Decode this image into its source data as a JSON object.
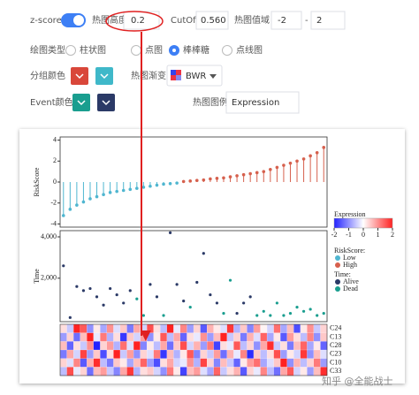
{
  "controls": {
    "zscore": {
      "label": "z-score",
      "on": true,
      "color": "#3d7ff5"
    },
    "heatmap_height": {
      "label": "热图高度",
      "value": "0.2"
    },
    "cutoff": {
      "label": "CutOff",
      "value": "0.560"
    },
    "heatmap_range": {
      "label": "热图值域",
      "min": "-2",
      "sep": "-",
      "max": "2"
    },
    "plot_type": {
      "label": "绘图类型",
      "options": [
        "柱状图",
        "点图",
        "棒棒糖",
        "点线图"
      ],
      "selected": 2
    },
    "group_colors": {
      "label": "分组颜色",
      "colors": [
        "#d9473a",
        "#3fb8c9"
      ]
    },
    "gradient": {
      "label": "热图渐变",
      "value": "BWR"
    },
    "event_colors": {
      "label": "Event颜色",
      "colors": [
        "#1a9e8f",
        "#2b3a67"
      ]
    },
    "legend_title": {
      "label": "热图图例",
      "value": "Expression"
    }
  },
  "chart_data": [
    {
      "type": "lollipop",
      "y_label": "RiskScore",
      "ylim": [
        -4.3,
        4.3
      ],
      "yticks": [
        -4,
        -2,
        0,
        2,
        4
      ],
      "values": [
        -3.2,
        -2.6,
        -2.2,
        -1.9,
        -1.6,
        -1.4,
        -1.2,
        -1.0,
        -0.9,
        -0.8,
        -0.7,
        -0.6,
        -0.5,
        -0.4,
        -0.3,
        -0.2,
        -0.15,
        -0.1,
        0.05,
        0.1,
        0.15,
        0.2,
        0.3,
        0.35,
        0.4,
        0.5,
        0.6,
        0.7,
        0.8,
        0.9,
        1.0,
        1.2,
        1.4,
        1.6,
        1.8,
        2.0,
        2.2,
        2.5,
        2.8,
        3.3
      ],
      "legend": {
        "title": "RiskScore:",
        "items": [
          {
            "name": "Low",
            "color": "#4fb6d0"
          },
          {
            "name": "High",
            "color": "#d6604d"
          }
        ]
      }
    },
    {
      "type": "scatter",
      "y_label": "Time",
      "ylim": [
        -100,
        4300
      ],
      "yticks": [
        {
          "value": 2000,
          "label": "2,000"
        },
        {
          "value": 4000,
          "label": "4,000"
        }
      ],
      "legend_title": "Time:",
      "series": [
        {
          "name": "Alive",
          "color": "#2b3a67",
          "values": [
            2600,
            100,
            1600,
            1400,
            1500,
            1100,
            700,
            1500,
            1200,
            800,
            1400,
            null,
            null,
            1700,
            1100,
            null,
            4200,
            1700,
            900,
            null,
            1800,
            3200,
            1200,
            800,
            null,
            null,
            300,
            800,
            1100,
            null,
            null,
            null,
            null,
            null,
            null,
            null,
            null,
            null,
            null,
            null
          ]
        },
        {
          "name": "Dead",
          "color": "#1a9e8f",
          "values": [
            null,
            null,
            null,
            null,
            null,
            null,
            null,
            null,
            null,
            null,
            null,
            1000,
            200,
            null,
            null,
            200,
            null,
            null,
            null,
            600,
            null,
            null,
            null,
            null,
            300,
            1900,
            null,
            null,
            null,
            200,
            400,
            200,
            800,
            200,
            300,
            600,
            400,
            500,
            200,
            300
          ]
        }
      ]
    },
    {
      "type": "heatmap",
      "legend_title": "Expression",
      "zlim": [
        -2,
        2
      ],
      "zticks": [
        -2,
        -1,
        0,
        1,
        2
      ],
      "colors": {
        "low": "#2222ff",
        "mid": "#ffffff",
        "high": "#ff2222"
      },
      "rows": [
        "C24",
        "C13",
        "C28",
        "C23",
        "C10",
        "C33"
      ],
      "values": [
        [
          0.3,
          -0.5,
          2,
          1.5,
          -1,
          0.2,
          -0.8,
          1,
          -0.3,
          0.5,
          -1.2,
          0.8,
          -0.4,
          1.6,
          0.3,
          -0.6,
          2,
          -0.2,
          1.1,
          -0.9,
          0.4,
          -1.5,
          0.7,
          0.2,
          -0.3,
          1.8,
          -0.7,
          0.5,
          -1.1,
          0.9,
          0.1,
          -0.4,
          1.3,
          -0.8,
          0.6,
          -1.6,
          0.2,
          1,
          -0.5,
          0.4
        ],
        [
          -0.9,
          0.4,
          -1.3,
          0.6,
          2,
          -0.2,
          1.2,
          -0.7,
          0.3,
          -1.8,
          0.5,
          -0.4,
          0.9,
          -1,
          0.2,
          1.5,
          -0.6,
          0.8,
          -1.4,
          0.3,
          -0.2,
          1,
          -0.9,
          0.6,
          2,
          -0.5,
          0.4,
          -1.2,
          0.7,
          -0.3,
          1.4,
          -0.8,
          0.2,
          -1.5,
          0.9,
          0.3,
          -0.6,
          1.1,
          -1,
          0.5
        ],
        [
          0.6,
          -1.4,
          0.3,
          -0.5,
          1,
          -2,
          0.4,
          0.9,
          -0.7,
          1.3,
          -0.3,
          2,
          -1.1,
          0.2,
          -0.6,
          0.8,
          -1.3,
          0.5,
          1.6,
          -0.4,
          0.7,
          -0.9,
          1.2,
          -1.7,
          0.3,
          -0.2,
          1.5,
          -0.6,
          0.4,
          -1,
          0.8,
          1.9,
          -0.5,
          0.3,
          -1.2,
          0.6,
          1.4,
          -0.8,
          0.2,
          -1.4
        ],
        [
          -1.2,
          0.8,
          -0.4,
          1.7,
          -0.9,
          0.5,
          -1.6,
          0.3,
          2,
          -0.5,
          0.9,
          -1,
          0.4,
          -0.3,
          1.2,
          -1.8,
          0.6,
          -0.7,
          0.2,
          1.5,
          -1.1,
          0.4,
          -0.5,
          0.9,
          -1.3,
          0.7,
          -0.2,
          1.1,
          -1.9,
          0.5,
          -0.6,
          0.3,
          1.6,
          -0.9,
          0.2,
          -0.4,
          1.8,
          -1,
          0.6,
          -0.3
        ],
        [
          0.4,
          -0.3,
          1.1,
          -1.5,
          0.7,
          1.9,
          -0.6,
          -1.2,
          0.5,
          0.2,
          -0.8,
          0.6,
          1.4,
          -0.9,
          -1.6,
          0.3,
          0.8,
          -0.4,
          -0.2,
          1,
          -0.7,
          1.7,
          0.4,
          -1.1,
          0.6,
          -0.5,
          -1.4,
          0.2,
          0.9,
          1.3,
          -0.8,
          -0.3,
          0.5,
          2,
          -1,
          0.7,
          -0.6,
          0.4,
          1.2,
          -0.9
        ],
        [
          -0.6,
          1.6,
          -0.2,
          0.4,
          -1.3,
          0.6,
          0.9,
          -0.5,
          -1.1,
          0.8,
          1.8,
          -0.7,
          0.3,
          0.5,
          -0.4,
          -1,
          1.2,
          0.2,
          -1.7,
          0.6,
          0.9,
          -0.3,
          -0.8,
          1.4,
          -0.5,
          0.3,
          0.7,
          -1.5,
          0.4,
          -0.2,
          1.1,
          -0.6,
          -1.3,
          0.8,
          1.5,
          -0.4,
          0.2,
          -0.9,
          0.6,
          1.9
        ]
      ]
    }
  ],
  "watermark": "知乎 @全能战士"
}
